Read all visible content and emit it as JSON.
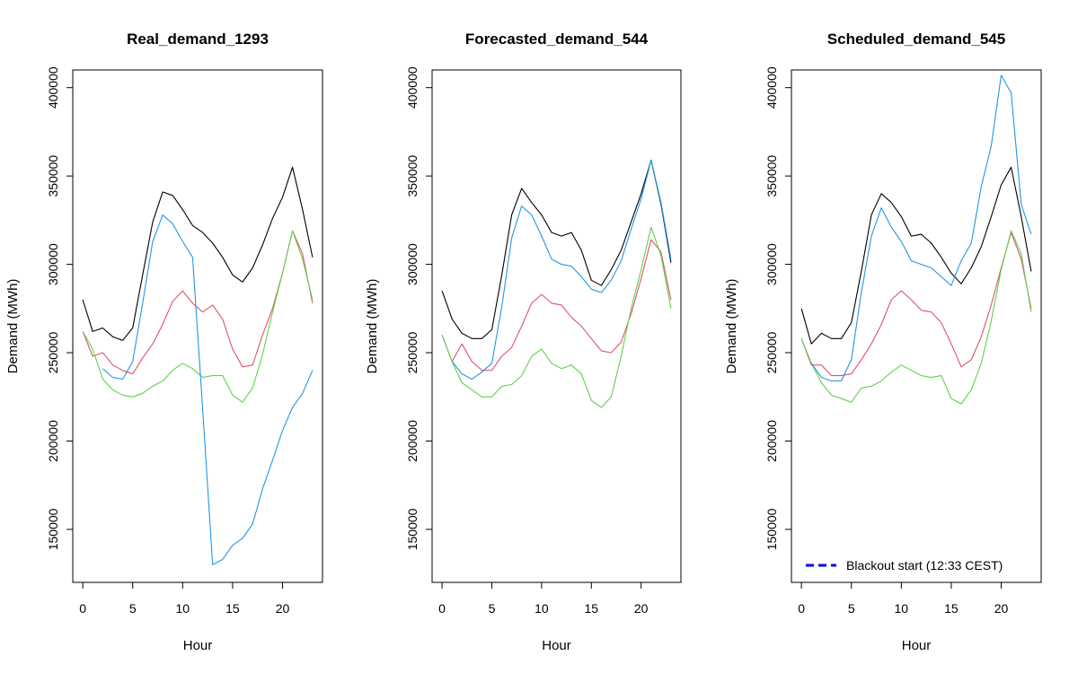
{
  "chart_data": [
    {
      "type": "line",
      "title": "Real_demand_1293",
      "xlabel": "Hour",
      "ylabel": "Demand (MWh)",
      "xlim": [
        -1,
        24
      ],
      "ylim": [
        120000,
        410000
      ],
      "xticks": [
        0,
        5,
        10,
        15,
        20
      ],
      "yticks": [
        150000,
        200000,
        250000,
        300000,
        350000,
        400000
      ],
      "series": [
        {
          "color": "#000000",
          "x": [
            0,
            1,
            2,
            3,
            4,
            5,
            6,
            7,
            8,
            9,
            10,
            11,
            12,
            13,
            14,
            15,
            16,
            17,
            18,
            19,
            20,
            21,
            22,
            23
          ],
          "values": [
            280000,
            262000,
            264000,
            259000,
            257000,
            264000,
            294000,
            324000,
            341000,
            339000,
            331000,
            322000,
            318000,
            312000,
            304000,
            294000,
            290000,
            298000,
            311000,
            326000,
            338000,
            355000,
            331000,
            304000
          ]
        },
        {
          "color": "#DF536B",
          "x": [
            0,
            1,
            2,
            3,
            4,
            5,
            6,
            7,
            8,
            9,
            10,
            11,
            12,
            13,
            14,
            15,
            16,
            17,
            18,
            19,
            20,
            21,
            22,
            23
          ],
          "values": [
            262000,
            248000,
            250000,
            243000,
            240000,
            238000,
            247000,
            255000,
            266000,
            279000,
            285000,
            278000,
            273000,
            277000,
            269000,
            252000,
            242000,
            243000,
            260000,
            275000,
            295000,
            319000,
            306000,
            278000
          ]
        },
        {
          "color": "#61D04F",
          "x": [
            0,
            1,
            2,
            3,
            4,
            5,
            6,
            7,
            8,
            9,
            10,
            11,
            12,
            13,
            14,
            15,
            16,
            17,
            18,
            19,
            20,
            21,
            22,
            23
          ],
          "values": [
            262000,
            252000,
            235000,
            229000,
            226000,
            225000,
            227000,
            231000,
            234000,
            240000,
            244000,
            241000,
            236000,
            237000,
            237000,
            226000,
            222000,
            230000,
            249000,
            273000,
            295000,
            319000,
            303000,
            280000
          ]
        },
        {
          "color": "#2297E6",
          "x": [
            2,
            3,
            4,
            5,
            6,
            7,
            8,
            9,
            10,
            11,
            12,
            13,
            14,
            15,
            16,
            17,
            18,
            19,
            20,
            21,
            22,
            23
          ],
          "values": [
            241000,
            236000,
            235000,
            245000,
            278000,
            313000,
            328000,
            323000,
            313000,
            304000,
            218000,
            130000,
            133000,
            141000,
            145000,
            153000,
            173000,
            189000,
            206000,
            219000,
            227000,
            240000
          ]
        }
      ]
    },
    {
      "type": "line",
      "title": "Forecasted_demand_544",
      "xlabel": "Hour",
      "ylabel": "Demand (MWh)",
      "xlim": [
        -1,
        24
      ],
      "ylim": [
        120000,
        410000
      ],
      "xticks": [
        0,
        5,
        10,
        15,
        20
      ],
      "yticks": [
        150000,
        200000,
        250000,
        300000,
        350000,
        400000
      ],
      "series": [
        {
          "color": "#000000",
          "x": [
            0,
            1,
            2,
            3,
            4,
            5,
            6,
            7,
            8,
            9,
            10,
            11,
            12,
            13,
            14,
            15,
            16,
            17,
            18,
            19,
            20,
            21,
            22,
            23
          ],
          "values": [
            285000,
            269000,
            261000,
            258000,
            258000,
            263000,
            294000,
            328000,
            343000,
            335000,
            328000,
            318000,
            316000,
            318000,
            308000,
            291000,
            288000,
            297000,
            308000,
            324000,
            340000,
            359000,
            334000,
            301000
          ]
        },
        {
          "color": "#DF536B",
          "x": [
            0,
            1,
            2,
            3,
            4,
            5,
            6,
            7,
            8,
            9,
            10,
            11,
            12,
            13,
            14,
            15,
            16,
            17,
            18,
            19,
            20,
            21,
            22,
            23
          ],
          "values": [
            260000,
            245000,
            255000,
            245000,
            240000,
            240000,
            248000,
            253000,
            265000,
            278000,
            283000,
            278000,
            277000,
            270000,
            265000,
            258000,
            251000,
            250000,
            256000,
            272000,
            292000,
            314000,
            307000,
            280000
          ]
        },
        {
          "color": "#61D04F",
          "x": [
            0,
            1,
            2,
            3,
            4,
            5,
            6,
            7,
            8,
            9,
            10,
            11,
            12,
            13,
            14,
            15,
            16,
            17,
            18,
            19,
            20,
            21,
            22,
            23
          ],
          "values": [
            260000,
            245000,
            233000,
            229000,
            225000,
            225000,
            231000,
            232000,
            237000,
            248000,
            252000,
            244000,
            241000,
            243000,
            238000,
            223000,
            219000,
            225000,
            248000,
            275000,
            297000,
            321000,
            305000,
            275000
          ]
        },
        {
          "color": "#2297E6",
          "x": [
            1,
            2,
            3,
            4,
            5,
            6,
            7,
            8,
            9,
            10,
            11,
            12,
            13,
            14,
            15,
            16,
            17,
            18,
            19,
            20,
            21,
            22,
            23
          ],
          "values": [
            245000,
            238000,
            235000,
            239000,
            244000,
            276000,
            315000,
            333000,
            328000,
            316000,
            303000,
            300000,
            299000,
            293000,
            286000,
            284000,
            291000,
            302000,
            320000,
            337000,
            359000,
            335000,
            303000
          ]
        }
      ]
    },
    {
      "type": "line",
      "title": "Scheduled_demand_545",
      "xlabel": "Hour",
      "ylabel": "Demand (MWh)",
      "xlim": [
        -1,
        24
      ],
      "ylim": [
        120000,
        410000
      ],
      "xticks": [
        0,
        5,
        10,
        15,
        20
      ],
      "yticks": [
        150000,
        200000,
        250000,
        300000,
        350000,
        400000
      ],
      "legend": {
        "position": "bottom-left",
        "label": "Blackout start (12:33 CEST)",
        "color": "#0000EE",
        "style": "dashed"
      },
      "series": [
        {
          "color": "#000000",
          "x": [
            0,
            1,
            2,
            3,
            4,
            5,
            6,
            7,
            8,
            9,
            10,
            11,
            12,
            13,
            14,
            15,
            16,
            17,
            18,
            19,
            20,
            21,
            22,
            23
          ],
          "values": [
            275000,
            255000,
            261000,
            258000,
            258000,
            267000,
            296000,
            328000,
            340000,
            335000,
            327000,
            316000,
            317000,
            312000,
            304000,
            295000,
            289000,
            298000,
            310000,
            327000,
            345000,
            355000,
            327000,
            296000
          ]
        },
        {
          "color": "#DF536B",
          "x": [
            0,
            1,
            2,
            3,
            4,
            5,
            6,
            7,
            8,
            9,
            10,
            11,
            12,
            13,
            14,
            15,
            16,
            17,
            18,
            19,
            20,
            21,
            22,
            23
          ],
          "values": [
            258000,
            243000,
            243000,
            237000,
            237000,
            238000,
            246000,
            255000,
            266000,
            280000,
            285000,
            280000,
            274000,
            273000,
            267000,
            255000,
            242000,
            246000,
            259000,
            277000,
            298000,
            318000,
            303000,
            275000
          ]
        },
        {
          "color": "#61D04F",
          "x": [
            0,
            1,
            2,
            3,
            4,
            5,
            6,
            7,
            8,
            9,
            10,
            11,
            12,
            13,
            14,
            15,
            16,
            17,
            18,
            19,
            20,
            21,
            22,
            23
          ],
          "values": [
            258000,
            244000,
            233000,
            226000,
            224000,
            222000,
            230000,
            231000,
            234000,
            239000,
            243000,
            240000,
            237000,
            236000,
            237000,
            224000,
            221000,
            229000,
            244000,
            268000,
            297000,
            319000,
            306000,
            273000
          ]
        },
        {
          "color": "#2297E6",
          "x": [
            1,
            2,
            3,
            4,
            5,
            6,
            7,
            8,
            9,
            10,
            11,
            12,
            13,
            14,
            15,
            16,
            17,
            18,
            19,
            20,
            21,
            22,
            23
          ],
          "values": [
            244000,
            236000,
            234000,
            234000,
            246000,
            284000,
            316000,
            332000,
            321000,
            313000,
            302000,
            300000,
            298000,
            293000,
            288000,
            302000,
            312000,
            344000,
            367000,
            407000,
            397000,
            334000,
            317000
          ]
        }
      ]
    }
  ]
}
